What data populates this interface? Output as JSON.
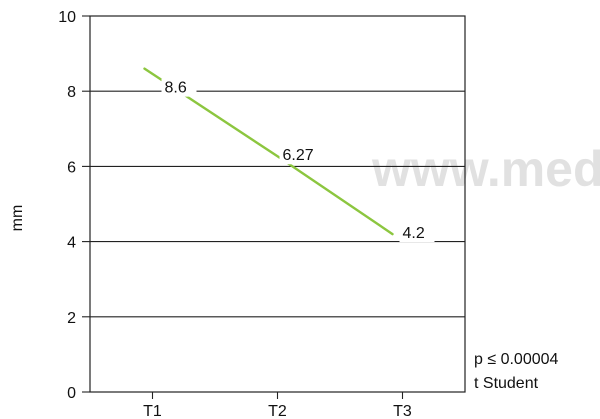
{
  "chart_data": {
    "type": "line",
    "categories": [
      "T1",
      "T2",
      "T3"
    ],
    "values": [
      8.6,
      6.27,
      4.2
    ],
    "data_labels": [
      "8.6",
      "6.27",
      "4.2"
    ],
    "title": "",
    "xlabel": "",
    "ylabel": "mm",
    "ylim": [
      0,
      10
    ],
    "yticks": [
      0,
      2,
      4,
      6,
      8,
      10
    ],
    "grid": true,
    "line_color": "#8cc63f",
    "annotation_line1": "p ≤ 0.00004",
    "annotation_line2": "t Student"
  },
  "watermark": "www.med"
}
